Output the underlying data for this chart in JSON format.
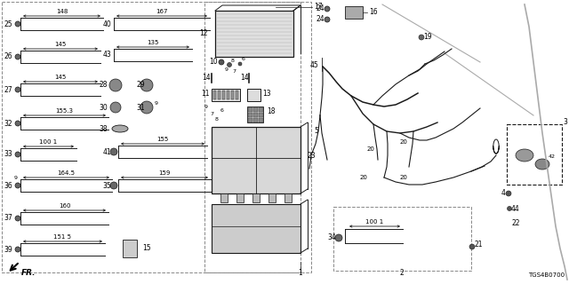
{
  "bg_color": "#ffffff",
  "line_color": "#1a1a1a",
  "dim_color": "#1a1a1a",
  "diagram_code": "TGS4B0700",
  "fs_label": 5.5,
  "fs_dim": 5.0,
  "fs_small": 4.5
}
